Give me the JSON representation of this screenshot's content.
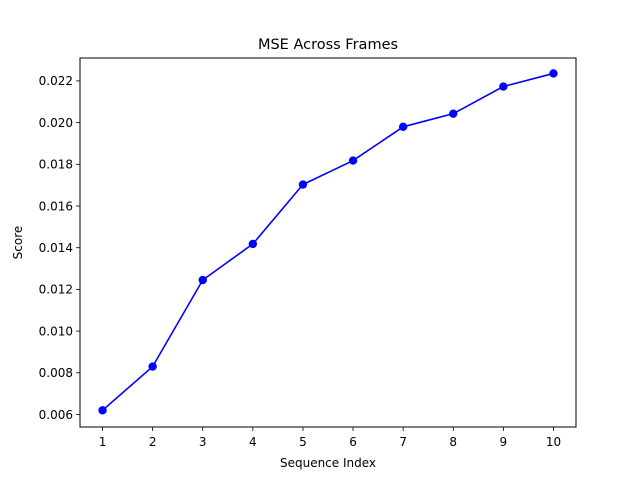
{
  "chart_data": {
    "type": "line",
    "title": "MSE Across Frames",
    "xlabel": "Sequence Index",
    "ylabel": "Score",
    "x": [
      1,
      2,
      3,
      4,
      5,
      6,
      7,
      8,
      9,
      10
    ],
    "series": [
      {
        "values": [
          0.0062,
          0.0083,
          0.01245,
          0.01418,
          0.01703,
          0.01818,
          0.0198,
          0.02043,
          0.02173,
          0.02236
        ],
        "color": "#0000ff",
        "marker": "circle"
      }
    ],
    "xticks": [
      "1",
      "2",
      "3",
      "4",
      "5",
      "6",
      "7",
      "8",
      "9",
      "10"
    ],
    "yticks": [
      "0.006",
      "0.008",
      "0.010",
      "0.012",
      "0.014",
      "0.016",
      "0.018",
      "0.020",
      "0.022"
    ],
    "xlim": [
      0.55,
      10.45
    ],
    "ylim": [
      0.0054,
      0.0231
    ],
    "grid": false,
    "legend": "none"
  }
}
